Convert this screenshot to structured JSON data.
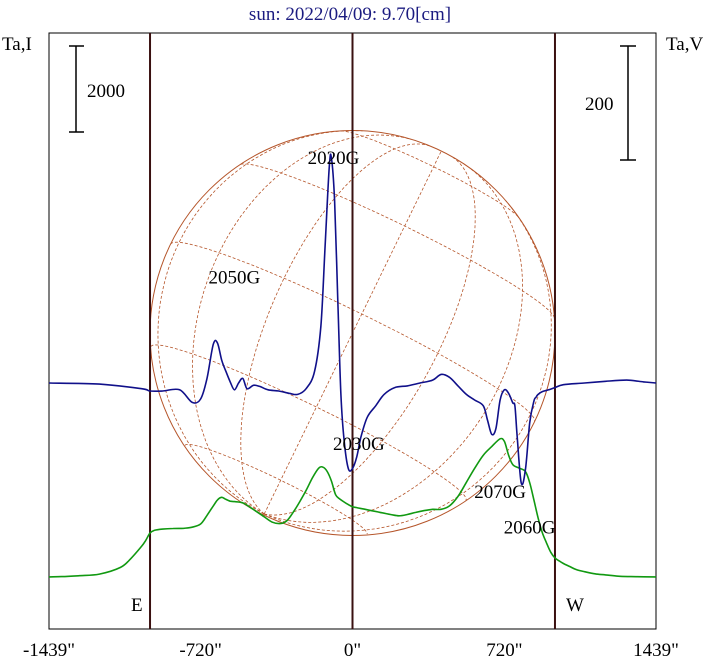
{
  "chart_data": {
    "type": "line",
    "title": "sun: 2022/04/09: 9.70[cm]",
    "left_axis_label": "Ta,I",
    "right_axis_label": "Ta,V",
    "left_scale_bar_label": "2000",
    "right_scale_bar_label": "200",
    "x_ticks": [
      "-1439\"",
      "-720\"",
      "0\"",
      "720\"",
      "1439\""
    ],
    "xlim": [
      -1439,
      1439
    ],
    "limb_labels": {
      "east": "E",
      "west": "W"
    },
    "vertical_lines_x": [
      -960,
      0,
      960
    ],
    "grid": false,
    "colors": {
      "stokes_i": "#119911",
      "stokes_v": "#10108a",
      "disk": "#b5552a",
      "guides": "#3a1010"
    },
    "region_labels": [
      {
        "text": "2020G",
        "x": -90,
        "level": 0.78
      },
      {
        "text": "2050G",
        "x": -560,
        "level": 0.58
      },
      {
        "text": "2030G",
        "x": 30,
        "level": 0.3
      },
      {
        "text": "2070G",
        "x": 700,
        "level": 0.22
      },
      {
        "text": "2060G",
        "x": 840,
        "level": 0.16
      }
    ],
    "series": [
      {
        "role": "Ta,I",
        "x": [
          -1439,
          -1380,
          -1300,
          -1200,
          -1100,
          -1050,
          -1000,
          -980,
          -960,
          -940,
          -900,
          -850,
          -800,
          -760,
          -720,
          -690,
          -660,
          -640,
          -620,
          -600,
          -580,
          -560,
          -520,
          -480,
          -420,
          -380,
          -340,
          -310,
          -280,
          -250,
          -220,
          -190,
          -160,
          -140,
          -120,
          -100,
          -80,
          -60,
          -40,
          -20,
          0,
          20,
          60,
          120,
          180,
          220,
          260,
          300,
          340,
          380,
          420,
          460,
          500,
          540,
          580,
          620,
          660,
          700,
          720,
          740,
          760,
          790,
          820,
          840,
          860,
          880,
          900,
          920,
          940,
          960,
          980,
          1000,
          1030,
          1060,
          1100,
          1150,
          1200,
          1260,
          1320,
          1380,
          1439
        ],
        "values": [
          50,
          55,
          75,
          115,
          270,
          480,
          760,
          900,
          1070,
          1130,
          1160,
          1175,
          1180,
          1205,
          1280,
          1480,
          1700,
          1840,
          1900,
          1850,
          1810,
          1800,
          1770,
          1650,
          1450,
          1320,
          1290,
          1360,
          1560,
          1800,
          2060,
          2350,
          2580,
          2600,
          2500,
          2280,
          1960,
          1860,
          1790,
          1730,
          1680,
          1660,
          1620,
          1560,
          1500,
          1470,
          1500,
          1550,
          1590,
          1620,
          1620,
          1700,
          1920,
          2250,
          2580,
          2880,
          3080,
          3260,
          3200,
          2880,
          2660,
          2580,
          2500,
          2240,
          1840,
          1420,
          1080,
          840,
          620,
          490,
          420,
          360,
          290,
          220,
          170,
          120,
          95,
          65,
          55,
          52,
          50
        ],
        "unit_note": "Ta,I in K (scale bar 2000)"
      },
      {
        "role": "Ta,V",
        "x": [
          -1439,
          -1200,
          -1000,
          -960,
          -900,
          -820,
          -760,
          -720,
          -690,
          -660,
          -640,
          -620,
          -600,
          -580,
          -560,
          -540,
          -520,
          -500,
          -470,
          -440,
          -400,
          -350,
          -300,
          -260,
          -220,
          -180,
          -150,
          -130,
          -110,
          -100,
          -85,
          -70,
          -55,
          -40,
          -20,
          0,
          20,
          40,
          70,
          110,
          150,
          200,
          260,
          320,
          380,
          420,
          460,
          500,
          540,
          580,
          620,
          640,
          660,
          680,
          700,
          720,
          740,
          760,
          770,
          780,
          800,
          820,
          840,
          860,
          870,
          880,
          900,
          930,
          960,
          1000,
          1100,
          1200,
          1300,
          1380,
          1439
        ],
        "values": [
          0,
          -2,
          -10,
          -14,
          -14,
          -12,
          -34,
          -28,
          8,
          68,
          70,
          40,
          20,
          2,
          -12,
          0,
          8,
          -10,
          -4,
          -6,
          -12,
          -14,
          -18,
          -20,
          -10,
          20,
          100,
          240,
          380,
          395,
          320,
          150,
          -20,
          -100,
          -150,
          -150,
          -130,
          -95,
          -60,
          -40,
          -20,
          -8,
          -5,
          0,
          5,
          15,
          10,
          -5,
          -20,
          -30,
          -40,
          -65,
          -90,
          -80,
          -30,
          -12,
          -18,
          -35,
          -40,
          -90,
          -175,
          -152,
          -70,
          -32,
          -25,
          -20,
          -15,
          -12,
          -8,
          -3,
          0,
          3,
          5,
          2,
          0
        ],
        "unit_note": "Ta,V in K (scale bar 200)"
      }
    ]
  }
}
